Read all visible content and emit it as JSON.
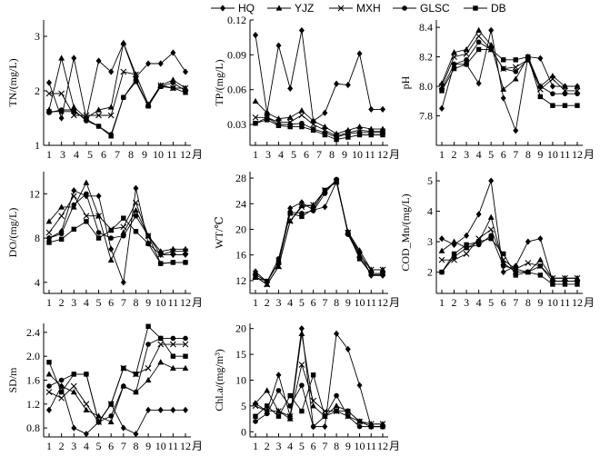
{
  "legend": [
    "HQ",
    "YJZ",
    "MXH",
    "GLSC",
    "DB"
  ],
  "chart_data": [
    {
      "type": "line",
      "ylabel": "TN/(mg/L)",
      "xunit": "月",
      "x": [
        1,
        2,
        3,
        4,
        5,
        6,
        7,
        8,
        9,
        10,
        11,
        12
      ],
      "xticks": [
        "1",
        "3",
        "4",
        "5",
        "6",
        "7",
        "8",
        "9",
        "10",
        "11",
        "12"
      ],
      "ylim": [
        1,
        3.3
      ],
      "yticks": [
        1,
        2,
        3
      ],
      "yticklabels": [
        "1",
        "2",
        "3"
      ],
      "series": [
        {
          "name": "HQ",
          "values": [
            2.15,
            1.5,
            2.6,
            1.5,
            2.55,
            2.35,
            2.87,
            2.25,
            2.5,
            2.5,
            2.7,
            2.35
          ]
        },
        {
          "name": "YJZ",
          "values": [
            1.65,
            2.6,
            1.7,
            1.5,
            1.65,
            1.7,
            2.88,
            2.3,
            1.75,
            2.1,
            2.2,
            2.05
          ]
        },
        {
          "name": "MXH",
          "values": [
            1.95,
            1.95,
            1.55,
            1.55,
            1.55,
            1.55,
            2.35,
            2.3,
            1.75,
            2.1,
            2.05,
            2.05
          ]
        },
        {
          "name": "GLSC",
          "values": [
            1.6,
            1.65,
            1.65,
            1.45,
            1.35,
            1.2,
            1.88,
            2.2,
            1.72,
            2.08,
            2.15,
            2.0
          ]
        },
        {
          "name": "DB",
          "values": [
            1.62,
            1.62,
            1.62,
            1.48,
            1.35,
            1.17,
            1.88,
            2.17,
            1.72,
            2.08,
            2.05,
            1.97
          ]
        }
      ]
    },
    {
      "type": "line",
      "ylabel": "TP/(mg/L)",
      "xunit": "月",
      "x": [
        1,
        2,
        3,
        4,
        5,
        6,
        7,
        8,
        9,
        10,
        11,
        12
      ],
      "xticks": [
        "1",
        "3",
        "4",
        "5",
        "6",
        "7",
        "8",
        "9",
        "10",
        "11",
        "12"
      ],
      "ylim": [
        0.012,
        0.12
      ],
      "yticks": [
        0.03,
        0.06,
        0.09,
        0.12
      ],
      "yticklabels": [
        "0.03",
        "0.06",
        "0.09",
        "0.12"
      ],
      "series": [
        {
          "name": "HQ",
          "values": [
            0.107,
            0.04,
            0.098,
            0.061,
            0.111,
            0.033,
            0.04,
            0.065,
            0.064,
            0.091,
            0.043,
            0.043
          ]
        },
        {
          "name": "YJZ",
          "values": [
            0.05,
            0.04,
            0.035,
            0.036,
            0.042,
            0.033,
            0.028,
            0.022,
            0.025,
            0.028,
            0.026,
            0.026
          ]
        },
        {
          "name": "MXH",
          "values": [
            0.036,
            0.036,
            0.032,
            0.032,
            0.038,
            0.03,
            0.025,
            0.02,
            0.023,
            0.025,
            0.024,
            0.024
          ]
        },
        {
          "name": "GLSC",
          "values": [
            0.031,
            0.036,
            0.03,
            0.03,
            0.031,
            0.026,
            0.023,
            0.019,
            0.022,
            0.023,
            0.023,
            0.023
          ]
        },
        {
          "name": "DB",
          "values": [
            0.031,
            0.034,
            0.029,
            0.028,
            0.028,
            0.025,
            0.021,
            0.017,
            0.019,
            0.021,
            0.021,
            0.021
          ]
        }
      ]
    },
    {
      "type": "line",
      "ylabel": "pH",
      "xunit": "月",
      "x": [
        1,
        2,
        3,
        4,
        5,
        6,
        7,
        8,
        9,
        10,
        11,
        12
      ],
      "xticks": [
        "1",
        "2",
        "3",
        "4",
        "5",
        "6",
        "7",
        "8",
        "9",
        "10",
        "11",
        "12"
      ],
      "ylim": [
        7.6,
        8.45
      ],
      "yticks": [
        7.8,
        8.0,
        8.2,
        8.4
      ],
      "yticklabels": [
        "7.8",
        "8.0",
        "8.2",
        "8.4"
      ],
      "series": [
        {
          "name": "HQ",
          "values": [
            7.85,
            8.15,
            8.15,
            8.02,
            8.38,
            7.92,
            7.7,
            8.2,
            8.19,
            8.0,
            8.0,
            8.0
          ]
        },
        {
          "name": "YJZ",
          "values": [
            8.02,
            8.23,
            8.25,
            8.38,
            8.28,
            7.98,
            8.05,
            8.2,
            8.0,
            8.07,
            8.0,
            8.0
          ]
        },
        {
          "name": "MXH",
          "values": [
            8.0,
            8.2,
            8.22,
            8.34,
            8.25,
            8.12,
            8.13,
            8.18,
            7.98,
            8.05,
            7.97,
            7.97
          ]
        },
        {
          "name": "GLSC",
          "values": [
            7.98,
            8.15,
            8.18,
            8.3,
            8.25,
            8.12,
            8.1,
            8.18,
            8.0,
            7.95,
            7.95,
            7.95
          ]
        },
        {
          "name": "DB",
          "values": [
            7.97,
            8.12,
            8.15,
            8.25,
            8.25,
            8.18,
            8.18,
            8.2,
            7.93,
            7.87,
            7.87,
            7.87
          ]
        }
      ]
    },
    {
      "type": "line",
      "ylabel": "DO/(mg/L)",
      "xunit": "月",
      "x": [
        1,
        2,
        3,
        4,
        5,
        6,
        7,
        8,
        9,
        10,
        11,
        12
      ],
      "xticks": [
        "1",
        "2",
        "3",
        "4",
        "5",
        "6",
        "7",
        "8",
        "9",
        "10",
        "11",
        "12"
      ],
      "ylim": [
        3,
        14
      ],
      "yticks": [
        4,
        8,
        12
      ],
      "yticklabels": [
        "4",
        "8",
        "12"
      ],
      "series": [
        {
          "name": "HQ",
          "values": [
            8.0,
            8.6,
            12.3,
            11.8,
            11.8,
            7.0,
            4.0,
            12.5,
            7.5,
            6.5,
            6.5,
            6.5
          ]
        },
        {
          "name": "YJZ",
          "values": [
            9.5,
            10.8,
            10.8,
            13.0,
            10.0,
            6.0,
            8.5,
            10.5,
            8.2,
            6.8,
            7.0,
            7.0
          ]
        },
        {
          "name": "MXH",
          "values": [
            8.5,
            10.0,
            11.8,
            10.0,
            10.0,
            8.8,
            9.0,
            11.2,
            8.2,
            6.5,
            6.8,
            6.8
          ]
        },
        {
          "name": "GLSC",
          "values": [
            8.0,
            8.4,
            11.0,
            12.0,
            8.5,
            8.0,
            8.2,
            10.0,
            8.2,
            5.7,
            5.8,
            5.8
          ]
        },
        {
          "name": "DB",
          "values": [
            7.6,
            7.9,
            8.8,
            9.5,
            8.0,
            8.7,
            9.8,
            8.6,
            7.5,
            5.7,
            5.8,
            5.8
          ]
        }
      ]
    },
    {
      "type": "line",
      "ylabel": "WT/℃",
      "xunit": "月",
      "x": [
        1,
        2,
        3,
        4,
        5,
        6,
        7,
        8,
        9,
        10,
        11,
        12
      ],
      "xticks": [
        "1",
        "2",
        "3",
        "4",
        "5",
        "6",
        "7",
        "8",
        "9",
        "10",
        "11",
        "12"
      ],
      "ylim": [
        10,
        29
      ],
      "yticks": [
        12,
        16,
        20,
        24,
        28
      ],
      "yticklabels": [
        "12",
        "16",
        "20",
        "24",
        "28"
      ],
      "series": [
        {
          "name": "HQ",
          "values": [
            13.4,
            11.8,
            14.8,
            23.3,
            24.2,
            23.0,
            23.5,
            27.4,
            19.4,
            16.4,
            12.8,
            12.8
          ]
        },
        {
          "name": "YJZ",
          "values": [
            12.6,
            11.4,
            14.2,
            21.3,
            23.7,
            23.8,
            26.0,
            27.6,
            19.6,
            16.7,
            13.7,
            13.7
          ]
        },
        {
          "name": "MXH",
          "values": [
            12.6,
            11.4,
            14.2,
            21.3,
            23.5,
            23.8,
            26.1,
            27.4,
            19.5,
            16.0,
            13.7,
            13.7
          ]
        },
        {
          "name": "GLSC",
          "values": [
            13.0,
            11.8,
            15.4,
            22.7,
            22.5,
            22.9,
            25.6,
            27.8,
            19.2,
            15.7,
            12.9,
            12.9
          ]
        },
        {
          "name": "DB",
          "values": [
            12.5,
            11.9,
            14.8,
            22.5,
            22.0,
            23.2,
            26.1,
            27.6,
            19.5,
            15.4,
            13.1,
            13.1
          ]
        }
      ]
    },
    {
      "type": "line",
      "ylabel": "COD_Mn/(mg/L)",
      "xunit": "月",
      "x": [
        1,
        2,
        3,
        4,
        5,
        6,
        7,
        8,
        9,
        10,
        11,
        12
      ],
      "xticks": [
        "1",
        "2",
        "3",
        "4",
        "5",
        "6",
        "7",
        "8",
        "9",
        "10",
        "11",
        "12"
      ],
      "ylim": [
        1.3,
        5.3
      ],
      "yticks": [
        2,
        3,
        4,
        5
      ],
      "yticklabels": [
        "2",
        "3",
        "4",
        "5"
      ],
      "series": [
        {
          "name": "HQ",
          "values": [
            3.1,
            2.9,
            3.2,
            3.9,
            5.0,
            2.0,
            2.2,
            3.0,
            3.1,
            1.7,
            1.7,
            1.7
          ]
        },
        {
          "name": "YJZ",
          "values": [
            2.7,
            3.0,
            2.8,
            3.0,
            3.8,
            2.3,
            2.0,
            2.0,
            2.4,
            1.8,
            1.8,
            1.8
          ]
        },
        {
          "name": "MXH",
          "values": [
            2.4,
            2.4,
            2.6,
            3.1,
            3.4,
            2.4,
            2.1,
            2.3,
            2.2,
            1.8,
            1.8,
            1.8
          ]
        },
        {
          "name": "GLSC",
          "values": [
            2.0,
            2.5,
            2.8,
            2.9,
            3.2,
            2.2,
            2.1,
            2.0,
            2.2,
            1.7,
            1.7,
            1.7
          ]
        },
        {
          "name": "DB",
          "values": [
            2.0,
            2.6,
            2.9,
            3.0,
            3.1,
            2.6,
            1.9,
            2.0,
            1.9,
            1.6,
            1.6,
            1.6
          ]
        }
      ]
    },
    {
      "type": "line",
      "ylabel": "SD/m",
      "xunit": "月",
      "x": [
        1,
        2,
        3,
        4,
        5,
        6,
        7,
        8,
        9,
        10,
        11,
        12
      ],
      "xticks": [
        "1",
        "2",
        "3",
        "4",
        "5",
        "6",
        "7",
        "8",
        "9",
        "10",
        "11",
        "12"
      ],
      "ylim": [
        0.65,
        2.55
      ],
      "yticks": [
        0.8,
        1.2,
        1.6,
        2.0,
        2.4
      ],
      "yticklabels": [
        "0.8",
        "1.2",
        "1.6",
        "2.0",
        "2.4"
      ],
      "series": [
        {
          "name": "HQ",
          "values": [
            1.1,
            1.5,
            0.8,
            0.7,
            0.9,
            1.2,
            0.8,
            0.7,
            1.1,
            1.1,
            1.1,
            1.1
          ]
        },
        {
          "name": "YJZ",
          "values": [
            1.7,
            1.5,
            1.4,
            1.1,
            1.0,
            0.9,
            1.5,
            1.4,
            1.6,
            1.9,
            1.8,
            1.8
          ]
        },
        {
          "name": "MXH",
          "values": [
            1.4,
            1.3,
            1.5,
            1.2,
            0.9,
            1.2,
            1.8,
            1.7,
            1.8,
            2.2,
            2.2,
            2.2
          ]
        },
        {
          "name": "GLSC",
          "values": [
            1.5,
            1.6,
            1.7,
            1.7,
            0.9,
            1.0,
            1.5,
            1.4,
            2.2,
            2.3,
            2.3,
            2.3
          ]
        },
        {
          "name": "DB",
          "values": [
            1.9,
            1.4,
            1.7,
            1.7,
            0.9,
            1.2,
            1.8,
            1.7,
            2.5,
            2.3,
            2.0,
            2.0
          ]
        }
      ]
    },
    {
      "type": "line",
      "ylabel": "Chl.a/(mg/m³)",
      "xunit": "月",
      "x": [
        1,
        2,
        3,
        4,
        5,
        6,
        7,
        8,
        9,
        10,
        11,
        12
      ],
      "xticks": [
        "1",
        "2",
        "3",
        "4",
        "5",
        "6",
        "7",
        "8",
        "9",
        "10",
        "11",
        "12"
      ],
      "ylim": [
        -1,
        21
      ],
      "yticks": [
        0,
        5,
        10,
        15,
        20
      ],
      "yticklabels": [
        "0",
        "5",
        "10",
        "15",
        "20"
      ],
      "series": [
        {
          "name": "HQ",
          "values": [
            5.5,
            4.0,
            11.0,
            3.0,
            20.0,
            1.0,
            1.0,
            19.0,
            16.0,
            9.0,
            1.0,
            1.0
          ]
        },
        {
          "name": "YJZ",
          "values": [
            5.5,
            8.0,
            4.0,
            2.5,
            19.0,
            5.0,
            3.0,
            5.0,
            4.0,
            2.0,
            1.5,
            1.5
          ]
        },
        {
          "name": "MXH",
          "values": [
            5.0,
            4.0,
            4.0,
            3.0,
            13.0,
            6.0,
            4.0,
            4.0,
            3.0,
            2.0,
            1.5,
            1.5
          ]
        },
        {
          "name": "GLSC",
          "values": [
            2.0,
            3.5,
            8.0,
            5.0,
            9.0,
            1.0,
            3.0,
            7.0,
            3.0,
            1.0,
            1.0,
            1.0
          ]
        },
        {
          "name": "DB",
          "values": [
            3.0,
            5.0,
            3.0,
            7.0,
            4.0,
            11.0,
            3.0,
            4.0,
            4.0,
            2.0,
            1.0,
            1.0
          ]
        }
      ]
    }
  ]
}
